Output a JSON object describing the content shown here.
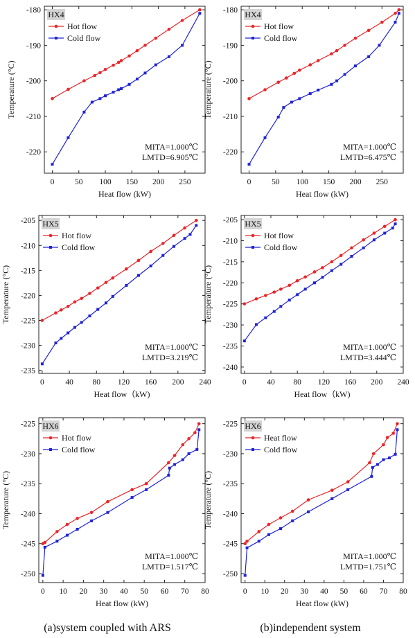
{
  "caption_left": "(a)system coupled with ARS",
  "caption_right": "(b)independent system",
  "colors": {
    "hot": "#e8262a",
    "cold": "#1f22d6",
    "tag_bg": "#d4d4d4"
  },
  "chart_data": [
    {
      "type": "line",
      "tag": "HX4",
      "xlabel": "Heat flow (kW)",
      "ylabel": "Temperature (°C)",
      "xlim": [
        -15,
        288
      ],
      "ylim": [
        -226,
        -179
      ],
      "xticks": [
        0,
        50,
        100,
        150,
        200,
        250
      ],
      "yticks": [
        -180,
        -190,
        -200,
        -210,
        -220
      ],
      "legend_position": "top-left",
      "annotation": [
        "MITA=1.000℃",
        "LMTD=6.905℃"
      ],
      "series": [
        {
          "name": "Hot flow",
          "color_key": "hot",
          "x": [
            0,
            30,
            60,
            80,
            90,
            100,
            115,
            125,
            130,
            145,
            160,
            175,
            195,
            220,
            245,
            278
          ],
          "y": [
            -205,
            -202.4,
            -200,
            -198.5,
            -197.7,
            -196.8,
            -195.6,
            -194.8,
            -194.3,
            -193,
            -191.5,
            -190,
            -188,
            -185.5,
            -183,
            -180
          ]
        },
        {
          "name": "Cold flow",
          "color_key": "cold",
          "x": [
            0,
            30,
            60,
            75,
            90,
            100,
            115,
            125,
            130,
            145,
            160,
            175,
            195,
            220,
            245,
            278
          ],
          "y": [
            -223.5,
            -216,
            -208.8,
            -206,
            -205,
            -204.2,
            -203.2,
            -202.5,
            -202.2,
            -201,
            -199.5,
            -197.8,
            -195.5,
            -193.2,
            -190,
            -181
          ]
        }
      ]
    },
    {
      "type": "line",
      "tag": "HX4",
      "xlabel": "Heat flow (kW)",
      "ylabel": "Temperature (°C)",
      "xlim": [
        -15,
        290
      ],
      "ylim": [
        -226,
        -179
      ],
      "xticks": [
        0,
        50,
        100,
        150,
        200,
        250
      ],
      "yticks": [
        -180,
        -190,
        -200,
        -210,
        -220
      ],
      "legend_position": "top-left",
      "annotation": [
        "MITA=1.000℃",
        "LMTD=6.475℃"
      ],
      "series": [
        {
          "name": "Hot flow",
          "color_key": "hot",
          "x": [
            0,
            30,
            55,
            70,
            85,
            95,
            115,
            130,
            155,
            165,
            180,
            200,
            225,
            250,
            275,
            282
          ],
          "y": [
            -205,
            -202.5,
            -200.4,
            -199.2,
            -197.9,
            -197,
            -195.5,
            -194.3,
            -192.4,
            -191.5,
            -190,
            -188,
            -185.8,
            -183.5,
            -181,
            -180
          ]
        },
        {
          "name": "Cold flow",
          "color_key": "cold",
          "x": [
            0,
            30,
            55,
            65,
            80,
            95,
            115,
            130,
            155,
            165,
            180,
            200,
            225,
            245,
            275,
            282
          ],
          "y": [
            -223.5,
            -216,
            -210.2,
            -207.5,
            -206,
            -205,
            -203.6,
            -202.6,
            -201,
            -200,
            -198.2,
            -195.8,
            -193.2,
            -190,
            -183.5,
            -181
          ]
        }
      ]
    },
    {
      "type": "line",
      "tag": "HX5",
      "xlabel": "Heat flow（kW)",
      "ylabel": "Temperature (°C)",
      "xlim": [
        -5,
        240
      ],
      "ylim": [
        -235.6,
        -204
      ],
      "xticks": [
        0,
        40,
        80,
        120,
        160,
        200,
        240
      ],
      "yticks": [
        -205,
        -210,
        -215,
        -220,
        -225,
        -230,
        -235
      ],
      "legend_position": "top-left",
      "annotation": [
        "MITA=1.000℃",
        "LMTD=3.219℃"
      ],
      "series": [
        {
          "name": "Hot flow",
          "color_key": "hot",
          "x": [
            0,
            20,
            28,
            38,
            48,
            58,
            70,
            82,
            94,
            104,
            124,
            142,
            160,
            178,
            194,
            210,
            227
          ],
          "y": [
            -225,
            -223.5,
            -222.9,
            -222.2,
            -221.3,
            -220.6,
            -219.6,
            -218.5,
            -217.4,
            -216.5,
            -214.7,
            -213,
            -211.2,
            -209.6,
            -208,
            -206.5,
            -205
          ]
        },
        {
          "name": "Cold flow",
          "color_key": "cold",
          "x": [
            0,
            20,
            28,
            38,
            48,
            58,
            70,
            82,
            94,
            104,
            124,
            142,
            160,
            178,
            194,
            210,
            218,
            227
          ],
          "y": [
            -233.7,
            -229.5,
            -228.6,
            -227.5,
            -226.4,
            -225.4,
            -224.1,
            -222.8,
            -221.5,
            -220.2,
            -218,
            -216,
            -214.1,
            -212,
            -210.2,
            -208.6,
            -207.8,
            -206
          ]
        }
      ]
    },
    {
      "type": "line",
      "tag": "HX5",
      "xlabel": "Heat flow（kW)",
      "ylabel": "Temperature (°C)",
      "xlim": [
        -5,
        240
      ],
      "ylim": [
        -241.5,
        -204
      ],
      "xticks": [
        0,
        40,
        80,
        120,
        160,
        200,
        240
      ],
      "yticks": [
        -205,
        -210,
        -215,
        -220,
        -225,
        -230,
        -235,
        -240
      ],
      "legend_position": "top-left",
      "annotation": [
        "MITA=1.000℃",
        "LMTD=3.444℃"
      ],
      "series": [
        {
          "name": "Hot flow",
          "color_key": "hot",
          "x": [
            0,
            18,
            32,
            45,
            55,
            68,
            80,
            92,
            106,
            118,
            132,
            146,
            162,
            180,
            196,
            212,
            228
          ],
          "y": [
            -225,
            -223.8,
            -223,
            -222.2,
            -221.5,
            -220.6,
            -219.5,
            -218.6,
            -217.4,
            -216.4,
            -215,
            -213.5,
            -211.7,
            -209.8,
            -208.2,
            -206.6,
            -205
          ]
        },
        {
          "name": "Cold flow",
          "color_key": "cold",
          "x": [
            0,
            18,
            32,
            45,
            55,
            68,
            80,
            92,
            106,
            118,
            132,
            146,
            162,
            180,
            196,
            212,
            224,
            228
          ],
          "y": [
            -233.8,
            -229.9,
            -228.3,
            -226.8,
            -225.6,
            -224.1,
            -222.8,
            -221.5,
            -220,
            -218.7,
            -217.1,
            -215.6,
            -213.7,
            -211.7,
            -209.8,
            -208.2,
            -207,
            -206
          ]
        }
      ]
    },
    {
      "type": "line",
      "tag": "HX6",
      "xlabel": "Heat flow (kW)",
      "ylabel": "Temperature (°C)",
      "xlim": [
        -2,
        80
      ],
      "ylim": [
        -251.5,
        -224
      ],
      "xticks": [
        0,
        10,
        20,
        30,
        40,
        50,
        60,
        70,
        80
      ],
      "yticks": [
        -225,
        -230,
        -235,
        -240,
        -245,
        -250
      ],
      "legend_position": "top-left",
      "annotation": [
        "MITA=1.000℃",
        "LMTD=1.517℃"
      ],
      "series": [
        {
          "name": "Hot flow",
          "color_key": "hot",
          "x": [
            0,
            1,
            7,
            12,
            17,
            24,
            32,
            44,
            51,
            62,
            65,
            69,
            72,
            75,
            77
          ],
          "y": [
            -245,
            -244.8,
            -243,
            -241.8,
            -240.8,
            -239.8,
            -238,
            -236,
            -235,
            -231.5,
            -230.3,
            -228.5,
            -227.5,
            -226.5,
            -225
          ]
        },
        {
          "name": "Cold flow",
          "color_key": "cold",
          "x": [
            0,
            1,
            7,
            12,
            17,
            24,
            32,
            44,
            51,
            62,
            62.5,
            65,
            69,
            72,
            76,
            77
          ],
          "y": [
            -250.3,
            -245.6,
            -244.6,
            -243.6,
            -242.6,
            -241.2,
            -239.8,
            -237.3,
            -236,
            -233.6,
            -232.4,
            -231.8,
            -231,
            -230,
            -229.3,
            -226
          ]
        }
      ]
    },
    {
      "type": "line",
      "tag": "HX6",
      "xlabel": "Heat flow (kW)",
      "ylabel": "Temperature (°C)",
      "xlim": [
        -2,
        80
      ],
      "ylim": [
        -251.5,
        -224
      ],
      "xticks": [
        0,
        10,
        20,
        30,
        40,
        50,
        60,
        70,
        80
      ],
      "yticks": [
        -225,
        -230,
        -235,
        -240,
        -245,
        -250
      ],
      "legend_position": "top-left",
      "annotation": [
        "MITA=1.000℃",
        "LMTD=1.751℃"
      ],
      "series": [
        {
          "name": "Heat flow",
          "color_key": "hot",
          "x": [
            0,
            1,
            7,
            12,
            18,
            24,
            32,
            44,
            52,
            63,
            65,
            70,
            72,
            75,
            77
          ],
          "y": [
            -245,
            -244.6,
            -243,
            -241.8,
            -240.7,
            -239.6,
            -237.7,
            -236.1,
            -234.7,
            -231.5,
            -230,
            -228.5,
            -227.3,
            -226.6,
            -225
          ]
        },
        {
          "name": "Cold flow",
          "color_key": "cold",
          "x": [
            0,
            1,
            7,
            12,
            18,
            24,
            32,
            44,
            52,
            64,
            64.5,
            67,
            70,
            73,
            76,
            77
          ],
          "y": [
            -250.3,
            -245.7,
            -244.6,
            -243.5,
            -242.5,
            -241.2,
            -239.7,
            -237.5,
            -236,
            -233.8,
            -232.3,
            -231.8,
            -231,
            -230.7,
            -230.1,
            -226
          ]
        }
      ]
    }
  ]
}
